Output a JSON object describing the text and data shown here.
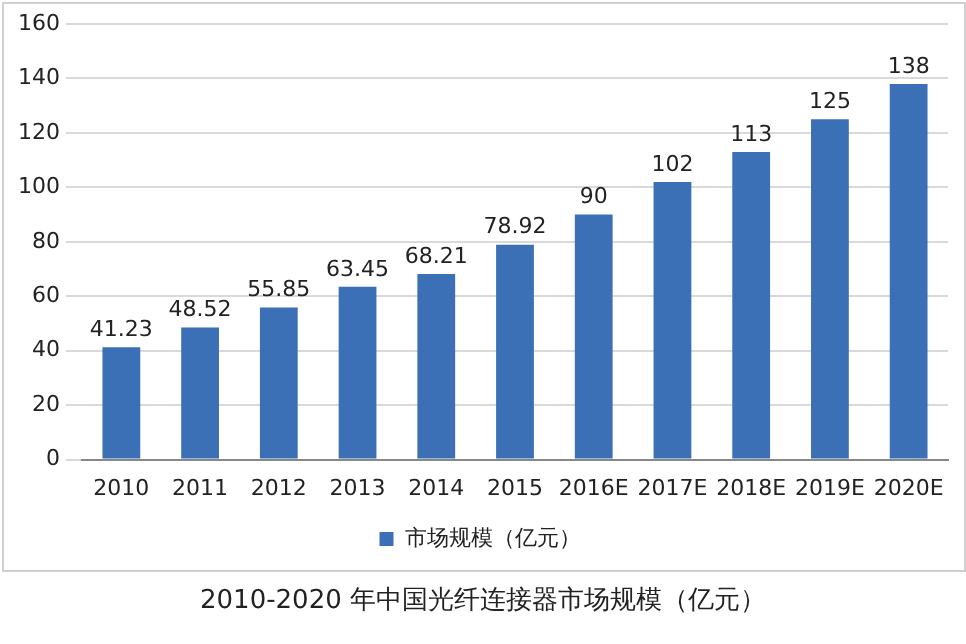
{
  "chart_data": {
    "type": "bar",
    "title": "2010-2020 年中国光纤连接器市场规模（亿元）",
    "categories": [
      "2010",
      "2011",
      "2012",
      "2013",
      "2014",
      "2015",
      "2016E",
      "2017E",
      "2018E",
      "2019E",
      "2020E"
    ],
    "series": [
      {
        "name": "市场规模（亿元）",
        "color": "#3b6fb6",
        "values": [
          41.23,
          48.52,
          55.85,
          63.45,
          68.21,
          78.92,
          90,
          102,
          113,
          125,
          138
        ]
      }
    ],
    "ylim": [
      0,
      160
    ],
    "yticks": [
      0,
      20,
      40,
      60,
      80,
      100,
      120,
      140,
      160
    ],
    "grid": "y",
    "legend": "bottom",
    "data_labels": true
  }
}
